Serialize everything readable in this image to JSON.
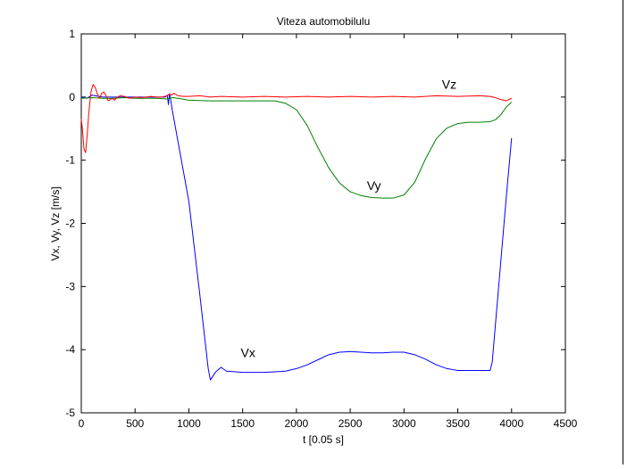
{
  "chart_data": {
    "type": "line",
    "title": "Viteza automobilulu",
    "xlabel": "t [0.05 s]",
    "ylabel": "Vx, Vy, Vz [m/s]",
    "xlim": [
      0,
      4500
    ],
    "ylim": [
      -5,
      1
    ],
    "xticks": [
      0,
      500,
      1000,
      1500,
      2000,
      2500,
      3000,
      3500,
      4000,
      4500
    ],
    "yticks": [
      1,
      0,
      -1,
      -2,
      -3,
      -4,
      -5
    ],
    "grid": false,
    "legend": "none",
    "series": [
      {
        "name": "Vx",
        "color": "#0000ff",
        "label_position": [
          1550,
          -4.12
        ],
        "x": [
          0,
          50,
          100,
          200,
          300,
          500,
          780,
          800,
          810,
          820,
          830,
          845,
          1000,
          1100,
          1150,
          1180,
          1200,
          1250,
          1300,
          1350,
          1500,
          1700,
          1800,
          1900,
          2000,
          2100,
          2200,
          2300,
          2400,
          2500,
          2600,
          2700,
          2800,
          2900,
          3000,
          3100,
          3200,
          3300,
          3400,
          3500,
          3600,
          3700,
          3800,
          3820,
          3850,
          3900,
          3950,
          4000
        ],
        "y": [
          0,
          -0.02,
          0.03,
          0,
          0,
          0,
          0,
          0.03,
          -0.12,
          0.05,
          -0.03,
          -0.2,
          -1.65,
          -3.1,
          -3.85,
          -4.3,
          -4.48,
          -4.35,
          -4.28,
          -4.34,
          -4.36,
          -4.36,
          -4.35,
          -4.34,
          -4.3,
          -4.24,
          -4.16,
          -4.08,
          -4.04,
          -4.03,
          -4.04,
          -4.05,
          -4.05,
          -4.04,
          -4.04,
          -4.08,
          -4.15,
          -4.24,
          -4.3,
          -4.33,
          -4.33,
          -4.33,
          -4.33,
          -4.2,
          -3.6,
          -2.6,
          -1.6,
          -0.65
        ]
      },
      {
        "name": "Vy",
        "color": "#008000",
        "label_position": [
          2720,
          -1.47
        ],
        "x": [
          0,
          100,
          200,
          300,
          400,
          500,
          600,
          700,
          800,
          850,
          900,
          1000,
          1200,
          1500,
          1800,
          1900,
          2000,
          2100,
          2200,
          2300,
          2400,
          2500,
          2600,
          2700,
          2800,
          2900,
          3000,
          3100,
          3200,
          3300,
          3400,
          3500,
          3600,
          3700,
          3800,
          3850,
          3900,
          3950,
          4000
        ],
        "y": [
          -0.02,
          -0.01,
          -0.02,
          -0.02,
          -0.01,
          -0.02,
          -0.02,
          -0.02,
          -0.03,
          -0.01,
          -0.02,
          -0.05,
          -0.06,
          -0.06,
          -0.06,
          -0.1,
          -0.2,
          -0.45,
          -0.8,
          -1.12,
          -1.36,
          -1.5,
          -1.56,
          -1.59,
          -1.6,
          -1.6,
          -1.55,
          -1.35,
          -0.98,
          -0.66,
          -0.49,
          -0.42,
          -0.4,
          -0.4,
          -0.39,
          -0.36,
          -0.28,
          -0.16,
          -0.08
        ]
      },
      {
        "name": "Vz",
        "color": "#ff0000",
        "label_position": [
          3420,
          0.13
        ],
        "x": [
          0,
          10,
          25,
          40,
          55,
          70,
          90,
          110,
          130,
          150,
          170,
          190,
          210,
          230,
          250,
          270,
          290,
          310,
          330,
          360,
          400,
          450,
          500,
          550,
          600,
          650,
          700,
          750,
          800,
          820,
          840,
          860,
          880,
          900,
          950,
          1000,
          1100,
          1200,
          1300,
          1500,
          1700,
          1900,
          2100,
          2300,
          2500,
          2700,
          2900,
          3100,
          3300,
          3500,
          3700,
          3800,
          3850,
          3900,
          3950,
          4000
        ],
        "y": [
          -0.35,
          -0.5,
          -0.82,
          -0.88,
          -0.6,
          -0.25,
          0.08,
          0.2,
          0.15,
          0.05,
          -0.02,
          0.06,
          0.08,
          0.02,
          -0.06,
          -0.04,
          -0.02,
          -0.05,
          -0.01,
          0.02,
          0.01,
          -0.02,
          0,
          -0.01,
          0,
          0.01,
          0,
          0,
          0.02,
          0.05,
          0.03,
          0.06,
          0.04,
          0.02,
          0.01,
          0.01,
          0.02,
          0,
          0.01,
          0,
          0.01,
          0,
          0.01,
          0,
          0.01,
          0,
          0.01,
          0,
          0.02,
          0.01,
          0.02,
          0.01,
          -0.01,
          -0.04,
          -0.06,
          -0.02
        ]
      }
    ]
  }
}
